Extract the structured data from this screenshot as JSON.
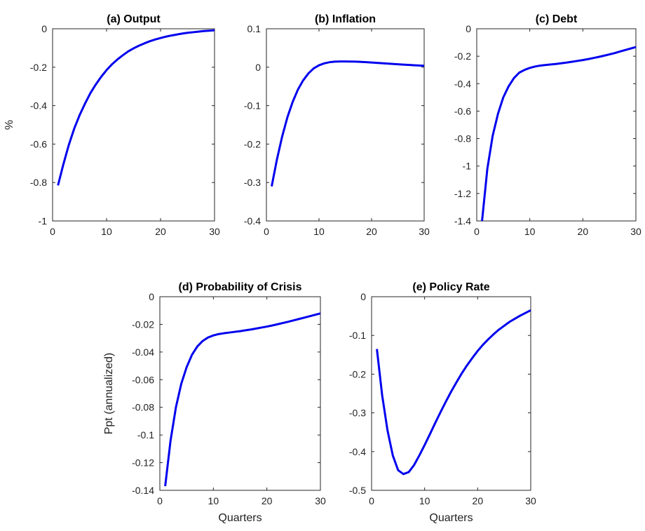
{
  "chart_data": [
    {
      "type": "line",
      "title": "(a) Output",
      "xlabel": "",
      "ylabel": "%",
      "xlim": [
        0,
        30
      ],
      "ylim": [
        -1,
        0
      ],
      "xticks": [
        0,
        10,
        20,
        30
      ],
      "xtick_labels": [
        "0",
        "10",
        "20",
        "30"
      ],
      "yticks": [
        0,
        -0.2,
        -0.4,
        -0.6,
        -0.8,
        -1
      ],
      "ytick_labels": [
        "0",
        "-0.2",
        "-0.4",
        "-0.6",
        "-0.8",
        "-1"
      ],
      "color": "#0000ee",
      "series": [
        {
          "x": [
            1,
            2,
            3,
            4,
            5,
            6,
            7,
            8,
            9,
            10,
            11,
            12,
            13,
            14,
            15,
            16,
            17,
            18,
            19,
            20,
            21,
            22,
            23,
            24,
            25,
            26,
            27,
            28,
            29,
            30
          ],
          "y": [
            -0.815,
            -0.705,
            -0.605,
            -0.52,
            -0.45,
            -0.39,
            -0.335,
            -0.29,
            -0.25,
            -0.215,
            -0.185,
            -0.16,
            -0.138,
            -0.118,
            -0.102,
            -0.088,
            -0.076,
            -0.065,
            -0.056,
            -0.048,
            -0.041,
            -0.035,
            -0.03,
            -0.025,
            -0.021,
            -0.018,
            -0.015,
            -0.012,
            -0.01,
            -0.008
          ]
        }
      ]
    },
    {
      "type": "line",
      "title": "(b) Inflation",
      "xlabel": "",
      "ylabel": "",
      "xlim": [
        0,
        30
      ],
      "ylim": [
        -0.4,
        0.1
      ],
      "xticks": [
        0,
        10,
        20,
        30
      ],
      "xtick_labels": [
        "0",
        "10",
        "20",
        "30"
      ],
      "yticks": [
        0.1,
        0,
        -0.1,
        -0.2,
        -0.3,
        -0.4
      ],
      "ytick_labels": [
        "0.1",
        "0",
        "-0.1",
        "-0.2",
        "-0.3",
        "-0.4"
      ],
      "color": "#0000ee",
      "series": [
        {
          "x": [
            1,
            2,
            3,
            4,
            5,
            6,
            7,
            8,
            9,
            10,
            11,
            12,
            13,
            14,
            15,
            16,
            17,
            18,
            19,
            20,
            21,
            22,
            23,
            24,
            25,
            26,
            27,
            28,
            29,
            30
          ],
          "y": [
            -0.31,
            -0.24,
            -0.18,
            -0.13,
            -0.09,
            -0.058,
            -0.034,
            -0.016,
            -0.003,
            0.005,
            0.01,
            0.013,
            0.0145,
            0.015,
            0.015,
            0.0148,
            0.0144,
            0.0138,
            0.013,
            0.0122,
            0.0113,
            0.0104,
            0.0095,
            0.0086,
            0.0077,
            0.0068,
            0.006,
            0.0052,
            0.0045,
            0.0038
          ]
        }
      ]
    },
    {
      "type": "line",
      "title": "(c) Debt",
      "xlabel": "",
      "ylabel": "",
      "xlim": [
        0,
        30
      ],
      "ylim": [
        -1.4,
        0
      ],
      "xticks": [
        0,
        10,
        20,
        30
      ],
      "xtick_labels": [
        "0",
        "10",
        "20",
        "30"
      ],
      "yticks": [
        0,
        -0.2,
        -0.4,
        -0.6,
        -0.8,
        -1,
        -1.2,
        -1.4
      ],
      "ytick_labels": [
        "0",
        "-0.2",
        "-0.4",
        "-0.6",
        "-0.8",
        "-1",
        "-1.2",
        "-1.4"
      ],
      "color": "#0000ee",
      "series": [
        {
          "x": [
            1,
            2,
            3,
            4,
            5,
            6,
            7,
            8,
            9,
            10,
            11,
            12,
            13,
            14,
            15,
            16,
            17,
            18,
            19,
            20,
            21,
            22,
            23,
            24,
            25,
            26,
            27,
            28,
            29,
            30
          ],
          "y": [
            -1.4,
            -1.02,
            -0.78,
            -0.62,
            -0.5,
            -0.42,
            -0.36,
            -0.32,
            -0.3,
            -0.285,
            -0.275,
            -0.268,
            -0.264,
            -0.26,
            -0.256,
            -0.251,
            -0.246,
            -0.24,
            -0.234,
            -0.228,
            -0.221,
            -0.213,
            -0.205,
            -0.196,
            -0.187,
            -0.177,
            -0.166,
            -0.155,
            -0.144,
            -0.133
          ]
        }
      ]
    },
    {
      "type": "line",
      "title": "(d) Probability of Crisis",
      "xlabel": "Quarters",
      "ylabel": "Ppt (annualized)",
      "xlim": [
        0,
        30
      ],
      "ylim": [
        -0.14,
        0
      ],
      "xticks": [
        0,
        10,
        20,
        30
      ],
      "xtick_labels": [
        "0",
        "10",
        "20",
        "30"
      ],
      "yticks": [
        0,
        -0.02,
        -0.04,
        -0.06,
        -0.08,
        -0.1,
        -0.12,
        -0.14
      ],
      "ytick_labels": [
        "0",
        "-0.02",
        "-0.04",
        "-0.06",
        "-0.08",
        "-0.1",
        "-0.12",
        "-0.14"
      ],
      "color": "#0000ee",
      "series": [
        {
          "x": [
            1,
            2,
            3,
            4,
            5,
            6,
            7,
            8,
            9,
            10,
            11,
            12,
            13,
            14,
            15,
            16,
            17,
            18,
            19,
            20,
            21,
            22,
            23,
            24,
            25,
            26,
            27,
            28,
            29,
            30
          ],
          "y": [
            -0.137,
            -0.104,
            -0.08,
            -0.063,
            -0.051,
            -0.042,
            -0.036,
            -0.032,
            -0.0295,
            -0.028,
            -0.027,
            -0.0264,
            -0.0259,
            -0.0254,
            -0.0249,
            -0.0243,
            -0.0237,
            -0.023,
            -0.0223,
            -0.0216,
            -0.0208,
            -0.0199,
            -0.019,
            -0.0181,
            -0.0171,
            -0.0161,
            -0.0151,
            -0.0141,
            -0.0131,
            -0.0121
          ]
        }
      ]
    },
    {
      "type": "line",
      "title": "(e) Policy Rate",
      "xlabel": "Quarters",
      "ylabel": "",
      "xlim": [
        0,
        30
      ],
      "ylim": [
        -0.5,
        0
      ],
      "xticks": [
        0,
        10,
        20,
        30
      ],
      "xtick_labels": [
        "0",
        "10",
        "20",
        "30"
      ],
      "yticks": [
        0,
        -0.1,
        -0.2,
        -0.3,
        -0.4,
        -0.5
      ],
      "ytick_labels": [
        "0",
        "-0.1",
        "-0.2",
        "-0.3",
        "-0.4",
        "-0.5"
      ],
      "color": "#0000ee",
      "series": [
        {
          "x": [
            1,
            2,
            3,
            4,
            5,
            6,
            7,
            8,
            9,
            10,
            11,
            12,
            13,
            14,
            15,
            16,
            17,
            18,
            19,
            20,
            21,
            22,
            23,
            24,
            25,
            26,
            27,
            28,
            29,
            30
          ],
          "y": [
            -0.135,
            -0.255,
            -0.345,
            -0.41,
            -0.448,
            -0.458,
            -0.453,
            -0.435,
            -0.41,
            -0.383,
            -0.355,
            -0.326,
            -0.298,
            -0.271,
            -0.245,
            -0.221,
            -0.198,
            -0.177,
            -0.158,
            -0.14,
            -0.124,
            -0.11,
            -0.097,
            -0.085,
            -0.075,
            -0.065,
            -0.057,
            -0.049,
            -0.042,
            -0.035
          ]
        }
      ]
    }
  ]
}
